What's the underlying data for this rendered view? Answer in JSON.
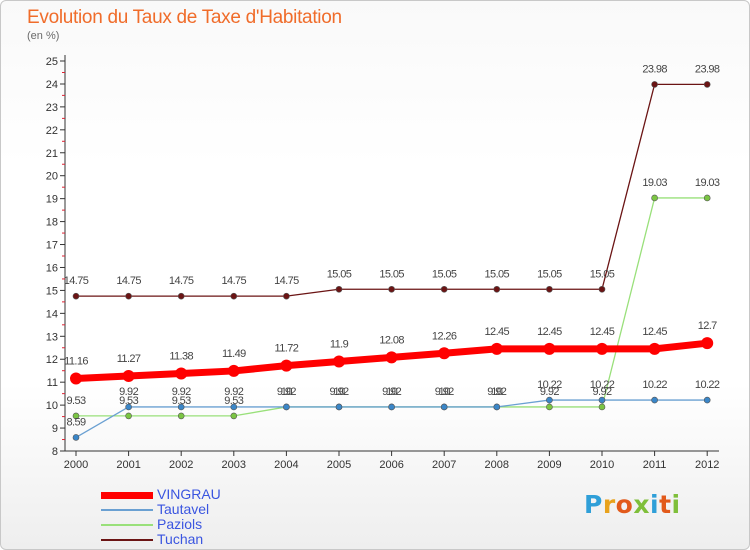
{
  "title": "Evolution du Taux de Taxe d'Habitation",
  "subtitle": "(en %)",
  "logo": {
    "letters": [
      {
        "ch": "P",
        "color": "#2f9fd8"
      },
      {
        "ch": "r",
        "color": "#e8a21c"
      },
      {
        "ch": "o",
        "color": "#e25a1b"
      },
      {
        "ch": "x",
        "color": "#7fbf3a"
      },
      {
        "ch": "i",
        "color": "#2f9fd8"
      },
      {
        "ch": "t",
        "color": "#e25a1b"
      },
      {
        "ch": "i",
        "color": "#7fbf3a"
      }
    ]
  },
  "chart_data": {
    "type": "line",
    "x": [
      "2000",
      "2001",
      "2002",
      "2003",
      "2004",
      "2005",
      "2006",
      "2007",
      "2008",
      "2009",
      "2010",
      "2011",
      "2012"
    ],
    "ylim": [
      8,
      25
    ],
    "yticks": [
      8,
      9,
      10,
      11,
      12,
      13,
      14,
      15,
      16,
      17,
      18,
      19,
      20,
      21,
      22,
      23,
      24,
      25
    ],
    "grid": false,
    "legend_position": "bottom-left",
    "series": [
      {
        "name": "Tuchan",
        "color": "#6b1414",
        "dot": "#6b1414",
        "width": 1.3,
        "r": 3,
        "values": [
          14.75,
          14.75,
          14.75,
          14.75,
          14.75,
          15.05,
          15.05,
          15.05,
          15.05,
          15.05,
          15.05,
          23.98,
          23.98
        ],
        "labels": [
          "14.75",
          "14.75",
          "14.75",
          "14.75",
          "14.75",
          "15.05",
          "15.05",
          "15.05",
          "15.05",
          "15.05",
          "15.05",
          "23.98",
          "23.98"
        ],
        "label_dy": -12
      },
      {
        "name": "Paziols",
        "color": "#99e07a",
        "dot": "#7bc543",
        "width": 1.3,
        "r": 3,
        "values": [
          9.53,
          9.53,
          9.53,
          9.53,
          9.92,
          9.92,
          9.92,
          9.92,
          9.92,
          9.92,
          9.92,
          19.03,
          19.03
        ],
        "labels": [
          "9.53",
          "9.53",
          "9.53",
          "9.53",
          "9.92",
          "9.92",
          "9.92",
          "9.92",
          "9.92",
          "9.92",
          "9.92",
          "19.03",
          "19.03"
        ],
        "label_dy": -12
      },
      {
        "name": "Tautavel",
        "color": "#6aa0d2",
        "dot": "#3a86c8",
        "width": 1.3,
        "r": 3,
        "values": [
          8.59,
          9.92,
          9.92,
          9.92,
          9.92,
          9.92,
          9.92,
          9.92,
          9.92,
          10.22,
          10.22,
          10.22,
          10.22
        ],
        "labels": [
          "8.59",
          "9.92",
          "9.92",
          "9.92",
          "10",
          "10",
          "10",
          "10",
          "10",
          "10.22",
          "10.22",
          "10.22",
          "10.22"
        ],
        "label_dy": -12
      },
      {
        "name": "VINGRAU",
        "color": "#ff0000",
        "dot": "#ff0000",
        "width": 7,
        "r": 6,
        "values": [
          11.16,
          11.27,
          11.38,
          11.49,
          11.72,
          11.9,
          12.08,
          12.26,
          12.45,
          12.45,
          12.45,
          12.45,
          12.7
        ],
        "labels": [
          "11.16",
          "11.27",
          "11.38",
          "11.49",
          "11.72",
          "11.9",
          "12.08",
          "12.26",
          "12.45",
          "12.45",
          "12.45",
          "12.45",
          "12.7"
        ],
        "label_dy": -14
      }
    ],
    "legend": [
      {
        "name": "VINGRAU",
        "color": "#ff0000",
        "text_color": "#3a55e0",
        "thickness": 7
      },
      {
        "name": "Tautavel",
        "color": "#6aa0d2",
        "text_color": "#3a55e0",
        "thickness": 2
      },
      {
        "name": "Paziols",
        "color": "#99e07a",
        "text_color": "#3a55e0",
        "thickness": 2
      },
      {
        "name": "Tuchan",
        "color": "#6b1414",
        "text_color": "#3a55e0",
        "thickness": 2
      }
    ]
  }
}
